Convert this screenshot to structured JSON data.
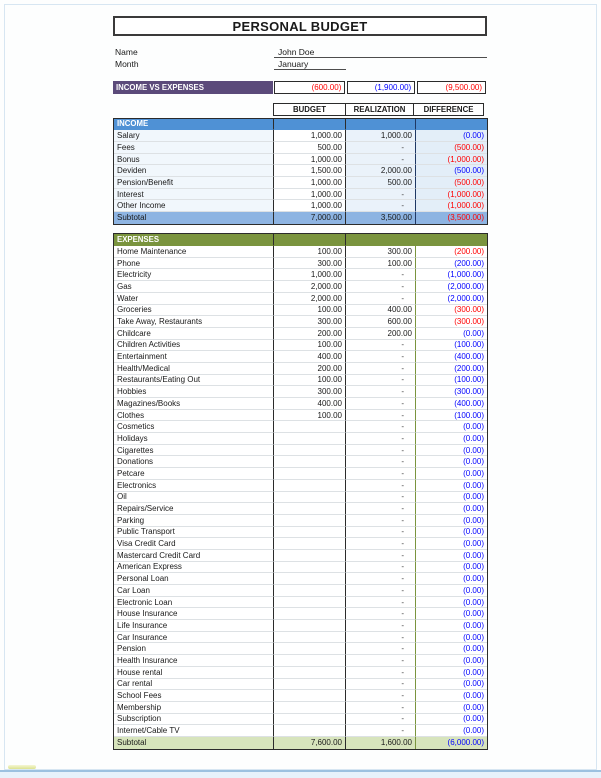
{
  "page": {
    "title": "PERSONAL BUDGET",
    "name_label": "Name",
    "name_value": "John Doe",
    "month_label": "Month",
    "month_value": "January"
  },
  "summary": {
    "label": "INCOME VS EXPENSES",
    "values": [
      {
        "text": "(600.00)",
        "color": "red"
      },
      {
        "text": "(1,900.00)",
        "color": "blue"
      },
      {
        "text": "(9,500.00)",
        "color": "red"
      }
    ]
  },
  "columns": [
    "BUDGET",
    "REALIZATION",
    "DIFFERENCE"
  ],
  "income": {
    "header": "INCOME",
    "rows": [
      {
        "label": "Salary",
        "budget": "1,000.00",
        "realization": "1,000.00",
        "difference": "(0.00)",
        "diff_color": "blue"
      },
      {
        "label": "Fees",
        "budget": "500.00",
        "realization": "-",
        "difference": "(500.00)",
        "diff_color": "red"
      },
      {
        "label": "Bonus",
        "budget": "1,000.00",
        "realization": "-",
        "difference": "(1,000.00)",
        "diff_color": "red"
      },
      {
        "label": "Deviden",
        "budget": "1,500.00",
        "realization": "2,000.00",
        "difference": "(500.00)",
        "diff_color": "blue"
      },
      {
        "label": "Pension/Benefit",
        "budget": "1,000.00",
        "realization": "500.00",
        "difference": "(500.00)",
        "diff_color": "red"
      },
      {
        "label": "Interest",
        "budget": "1,000.00",
        "realization": "-",
        "difference": "(1,000.00)",
        "diff_color": "red"
      },
      {
        "label": "Other Income",
        "budget": "1,000.00",
        "realization": "-",
        "difference": "(1,000.00)",
        "diff_color": "red"
      }
    ],
    "subtotal": {
      "label": "Subtotal",
      "budget": "7,000.00",
      "realization": "3,500.00",
      "difference": "(3,500.00)",
      "diff_color": "red"
    }
  },
  "expenses": {
    "header": "EXPENSES",
    "rows": [
      {
        "label": "Home Maintenance",
        "budget": "100.00",
        "realization": "300.00",
        "difference": "(200.00)",
        "diff_color": "red"
      },
      {
        "label": "Phone",
        "budget": "300.00",
        "realization": "100.00",
        "difference": "(200.00)",
        "diff_color": "blue"
      },
      {
        "label": "Electricity",
        "budget": "1,000.00",
        "realization": "-",
        "difference": "(1,000.00)",
        "diff_color": "blue"
      },
      {
        "label": "Gas",
        "budget": "2,000.00",
        "realization": "-",
        "difference": "(2,000.00)",
        "diff_color": "blue"
      },
      {
        "label": "Water",
        "budget": "2,000.00",
        "realization": "-",
        "difference": "(2,000.00)",
        "diff_color": "blue"
      },
      {
        "label": "Groceries",
        "budget": "100.00",
        "realization": "400.00",
        "difference": "(300.00)",
        "diff_color": "red"
      },
      {
        "label": "Take Away, Restaurants",
        "budget": "300.00",
        "realization": "600.00",
        "difference": "(300.00)",
        "diff_color": "red"
      },
      {
        "label": "Childcare",
        "budget": "200.00",
        "realization": "200.00",
        "difference": "(0.00)",
        "diff_color": "blue"
      },
      {
        "label": "Children Activities",
        "budget": "100.00",
        "realization": "-",
        "difference": "(100.00)",
        "diff_color": "blue"
      },
      {
        "label": "Entertainment",
        "budget": "400.00",
        "realization": "-",
        "difference": "(400.00)",
        "diff_color": "blue"
      },
      {
        "label": "Health/Medical",
        "budget": "200.00",
        "realization": "-",
        "difference": "(200.00)",
        "diff_color": "blue"
      },
      {
        "label": "Restaurants/Eating Out",
        "budget": "100.00",
        "realization": "-",
        "difference": "(100.00)",
        "diff_color": "blue"
      },
      {
        "label": "Hobbies",
        "budget": "300.00",
        "realization": "-",
        "difference": "(300.00)",
        "diff_color": "blue"
      },
      {
        "label": "Magazines/Books",
        "budget": "400.00",
        "realization": "-",
        "difference": "(400.00)",
        "diff_color": "blue"
      },
      {
        "label": "Clothes",
        "budget": "100.00",
        "realization": "-",
        "difference": "(100.00)",
        "diff_color": "blue"
      },
      {
        "label": "Cosmetics",
        "budget": "",
        "realization": "-",
        "difference": "(0.00)",
        "diff_color": "blue"
      },
      {
        "label": "Holidays",
        "budget": "",
        "realization": "-",
        "difference": "(0.00)",
        "diff_color": "blue"
      },
      {
        "label": "Cigarettes",
        "budget": "",
        "realization": "-",
        "difference": "(0.00)",
        "diff_color": "blue"
      },
      {
        "label": "Donations",
        "budget": "",
        "realization": "-",
        "difference": "(0.00)",
        "diff_color": "blue"
      },
      {
        "label": "Petcare",
        "budget": "",
        "realization": "-",
        "difference": "(0.00)",
        "diff_color": "blue"
      },
      {
        "label": "Electronics",
        "budget": "",
        "realization": "-",
        "difference": "(0.00)",
        "diff_color": "blue"
      },
      {
        "label": "Oil",
        "budget": "",
        "realization": "-",
        "difference": "(0.00)",
        "diff_color": "blue"
      },
      {
        "label": "Repairs/Service",
        "budget": "",
        "realization": "-",
        "difference": "(0.00)",
        "diff_color": "blue"
      },
      {
        "label": "Parking",
        "budget": "",
        "realization": "-",
        "difference": "(0.00)",
        "diff_color": "blue"
      },
      {
        "label": "Public Transport",
        "budget": "",
        "realization": "-",
        "difference": "(0.00)",
        "diff_color": "blue"
      },
      {
        "label": "Visa Credit Card",
        "budget": "",
        "realization": "-",
        "difference": "(0.00)",
        "diff_color": "blue"
      },
      {
        "label": "Mastercard Credit Card",
        "budget": "",
        "realization": "-",
        "difference": "(0.00)",
        "diff_color": "blue"
      },
      {
        "label": "American Express",
        "budget": "",
        "realization": "-",
        "difference": "(0.00)",
        "diff_color": "blue"
      },
      {
        "label": "Personal Loan",
        "budget": "",
        "realization": "-",
        "difference": "(0.00)",
        "diff_color": "blue"
      },
      {
        "label": "Car Loan",
        "budget": "",
        "realization": "-",
        "difference": "(0.00)",
        "diff_color": "blue"
      },
      {
        "label": "Electronic Loan",
        "budget": "",
        "realization": "-",
        "difference": "(0.00)",
        "diff_color": "blue"
      },
      {
        "label": "House Insurance",
        "budget": "",
        "realization": "-",
        "difference": "(0.00)",
        "diff_color": "blue"
      },
      {
        "label": "Life Insurance",
        "budget": "",
        "realization": "-",
        "difference": "(0.00)",
        "diff_color": "blue"
      },
      {
        "label": "Car Insurance",
        "budget": "",
        "realization": "-",
        "difference": "(0.00)",
        "diff_color": "blue"
      },
      {
        "label": "Pension",
        "budget": "",
        "realization": "-",
        "difference": "(0.00)",
        "diff_color": "blue"
      },
      {
        "label": "Health Insurance",
        "budget": "",
        "realization": "-",
        "difference": "(0.00)",
        "diff_color": "blue"
      },
      {
        "label": "House rental",
        "budget": "",
        "realization": "-",
        "difference": "(0.00)",
        "diff_color": "blue"
      },
      {
        "label": "Car rental",
        "budget": "",
        "realization": "-",
        "difference": "(0.00)",
        "diff_color": "blue"
      },
      {
        "label": "School Fees",
        "budget": "",
        "realization": "-",
        "difference": "(0.00)",
        "diff_color": "blue"
      },
      {
        "label": "Membership",
        "budget": "",
        "realization": "-",
        "difference": "(0.00)",
        "diff_color": "blue"
      },
      {
        "label": "Subscription",
        "budget": "",
        "realization": "-",
        "difference": "(0.00)",
        "diff_color": "blue"
      },
      {
        "label": "Internet/Cable TV",
        "budget": "",
        "realization": "-",
        "difference": "(0.00)",
        "diff_color": "blue"
      }
    ],
    "subtotal": {
      "label": "Subtotal",
      "budget": "7,600.00",
      "realization": "1,600.00",
      "difference": "(6,000.00)",
      "diff_color": "blue"
    }
  },
  "colors": {
    "summary_bar": "#5b4a7a",
    "income_header": "#4f91d5",
    "income_subtotal": "#8db4e2",
    "expenses_header": "#7a943e",
    "expenses_subtotal": "#d7e4bc",
    "negative_red": "#ff0000",
    "negative_blue": "#0000ff"
  }
}
